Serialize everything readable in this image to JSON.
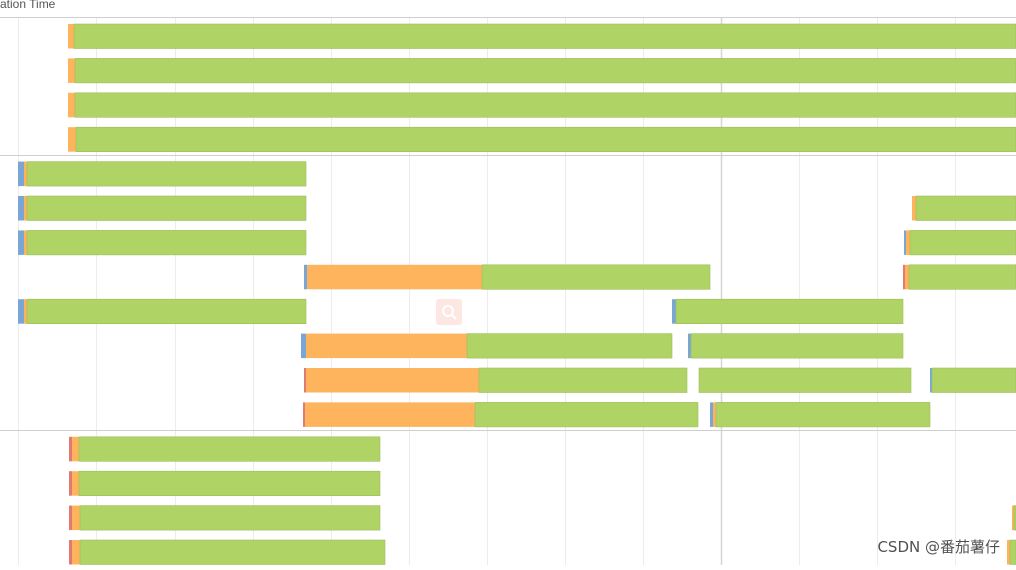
{
  "header": {
    "label": "ation Time"
  },
  "watermark": "CSDN @番茄薯仔",
  "chart_data": {
    "type": "bar",
    "subtype": "stacked-horizontal-timeline",
    "title": "",
    "xlabel": "",
    "ylabel": "",
    "xlim": [
      0,
      1016
    ],
    "grid": true,
    "x_gridlines": [
      18,
      96,
      175,
      253,
      331,
      409,
      487,
      565,
      643,
      721,
      799,
      877,
      955
    ],
    "groups": [
      {
        "rows": [
          0,
          1,
          2,
          3
        ]
      },
      {
        "rows": [
          4,
          5,
          6,
          7,
          8,
          9,
          10,
          11
        ]
      },
      {
        "rows": [
          12,
          13,
          14,
          15
        ]
      }
    ],
    "phase_colors": {
      "blue": "#7aa6d6",
      "red": "#e07a73",
      "orange": "#fdb45c",
      "green": "#b0d366"
    },
    "rows": [
      {
        "segments": [
          {
            "phase": "orange",
            "start": 68,
            "end": 74
          },
          {
            "phase": "green",
            "start": 74,
            "end": 1016
          }
        ]
      },
      {
        "segments": [
          {
            "phase": "orange",
            "start": 68,
            "end": 75
          },
          {
            "phase": "green",
            "start": 75,
            "end": 1016
          }
        ]
      },
      {
        "segments": [
          {
            "phase": "orange",
            "start": 68,
            "end": 75
          },
          {
            "phase": "green",
            "start": 75,
            "end": 1016
          }
        ]
      },
      {
        "segments": [
          {
            "phase": "orange",
            "start": 68,
            "end": 76
          },
          {
            "phase": "green",
            "start": 76,
            "end": 1016
          }
        ]
      },
      {
        "segments": [
          {
            "phase": "blue",
            "start": 18,
            "end": 24
          },
          {
            "phase": "orange",
            "start": 24,
            "end": 27
          },
          {
            "phase": "green",
            "start": 27,
            "end": 306
          }
        ]
      },
      {
        "segments": [
          {
            "phase": "blue",
            "start": 18,
            "end": 24
          },
          {
            "phase": "orange",
            "start": 24,
            "end": 27
          },
          {
            "phase": "green",
            "start": 27,
            "end": 306
          },
          {
            "phase": "orange",
            "start": 912,
            "end": 916
          },
          {
            "phase": "green",
            "start": 916,
            "end": 1016
          }
        ]
      },
      {
        "segments": [
          {
            "phase": "blue",
            "start": 18,
            "end": 24
          },
          {
            "phase": "orange",
            "start": 24,
            "end": 27
          },
          {
            "phase": "green",
            "start": 27,
            "end": 306
          },
          {
            "phase": "blue",
            "start": 904,
            "end": 906
          },
          {
            "phase": "orange",
            "start": 906,
            "end": 910
          },
          {
            "phase": "green",
            "start": 910,
            "end": 1016
          }
        ]
      },
      {
        "segments": [
          {
            "phase": "blue",
            "start": 304,
            "end": 307
          },
          {
            "phase": "orange",
            "start": 307,
            "end": 482
          },
          {
            "phase": "green",
            "start": 482,
            "end": 710
          },
          {
            "phase": "red",
            "start": 903,
            "end": 905
          },
          {
            "phase": "orange",
            "start": 905,
            "end": 909
          },
          {
            "phase": "green",
            "start": 909,
            "end": 1016
          }
        ]
      },
      {
        "segments": [
          {
            "phase": "blue",
            "start": 18,
            "end": 24
          },
          {
            "phase": "orange",
            "start": 24,
            "end": 27
          },
          {
            "phase": "green",
            "start": 27,
            "end": 306
          },
          {
            "phase": "blue",
            "start": 672,
            "end": 676
          },
          {
            "phase": "green",
            "start": 676,
            "end": 903
          }
        ]
      },
      {
        "segments": [
          {
            "phase": "blue",
            "start": 301,
            "end": 306
          },
          {
            "phase": "orange",
            "start": 306,
            "end": 467
          },
          {
            "phase": "green",
            "start": 467,
            "end": 672
          },
          {
            "phase": "blue",
            "start": 688,
            "end": 691
          },
          {
            "phase": "green",
            "start": 691,
            "end": 903
          }
        ]
      },
      {
        "segments": [
          {
            "phase": "red",
            "start": 304,
            "end": 306
          },
          {
            "phase": "orange",
            "start": 306,
            "end": 479
          },
          {
            "phase": "green",
            "start": 479,
            "end": 687
          },
          {
            "phase": "green",
            "start": 699,
            "end": 911
          },
          {
            "phase": "blue",
            "start": 930,
            "end": 932
          },
          {
            "phase": "green",
            "start": 932,
            "end": 1016
          }
        ]
      },
      {
        "segments": [
          {
            "phase": "red",
            "start": 303,
            "end": 305
          },
          {
            "phase": "orange",
            "start": 305,
            "end": 475
          },
          {
            "phase": "green",
            "start": 475,
            "end": 698
          },
          {
            "phase": "blue",
            "start": 710,
            "end": 713
          },
          {
            "phase": "orange",
            "start": 713,
            "end": 716
          },
          {
            "phase": "green",
            "start": 716,
            "end": 930
          }
        ]
      },
      {
        "segments": [
          {
            "phase": "red",
            "start": 69,
            "end": 72
          },
          {
            "phase": "orange",
            "start": 72,
            "end": 79
          },
          {
            "phase": "green",
            "start": 79,
            "end": 380
          }
        ]
      },
      {
        "segments": [
          {
            "phase": "red",
            "start": 69,
            "end": 72
          },
          {
            "phase": "orange",
            "start": 72,
            "end": 79
          },
          {
            "phase": "green",
            "start": 79,
            "end": 380
          }
        ]
      },
      {
        "segments": [
          {
            "phase": "red",
            "start": 69,
            "end": 72
          },
          {
            "phase": "orange",
            "start": 72,
            "end": 80
          },
          {
            "phase": "green",
            "start": 80,
            "end": 380
          },
          {
            "phase": "orange",
            "start": 1012,
            "end": 1014
          },
          {
            "phase": "green",
            "start": 1014,
            "end": 1016
          }
        ]
      },
      {
        "segments": [
          {
            "phase": "red",
            "start": 69,
            "end": 72
          },
          {
            "phase": "orange",
            "start": 72,
            "end": 80
          },
          {
            "phase": "green",
            "start": 80,
            "end": 385
          },
          {
            "phase": "orange",
            "start": 1007,
            "end": 1010
          },
          {
            "phase": "green",
            "start": 1010,
            "end": 1016
          }
        ]
      }
    ]
  }
}
